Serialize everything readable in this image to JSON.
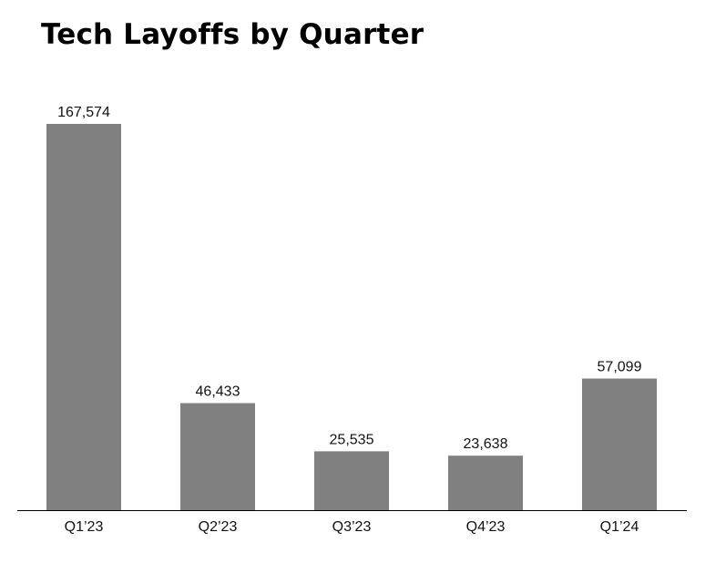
{
  "chart_data": {
    "type": "bar",
    "title": "Tech Layoffs by Quarter",
    "xlabel": "",
    "ylabel": "",
    "categories": [
      "Q1’23",
      "Q2’23",
      "Q3’23",
      "Q4’23",
      "Q1’24"
    ],
    "values": [
      167574,
      46433,
      25535,
      23638,
      57099
    ],
    "value_labels": [
      "167,574",
      "46,433",
      "25,535",
      "23,638",
      "57,099"
    ],
    "ylim": [
      0,
      167574
    ],
    "grid": false,
    "legend": "none",
    "bar_color": "#808080",
    "axis_color": "#000000"
  }
}
